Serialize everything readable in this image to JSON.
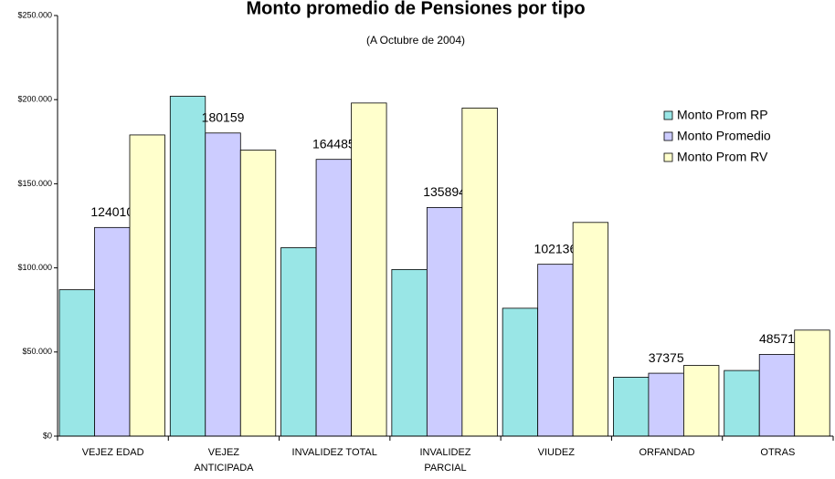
{
  "chart_data": {
    "type": "bar",
    "title": "Monto promedio de Pensiones por tipo",
    "subtitle": "(A Octubre de 2004)",
    "categories": [
      "VEJEZ EDAD",
      "VEJEZ\nANTICIPADA",
      "INVALIDEZ TOTAL",
      "INVALIDEZ\nPARCIAL",
      "VIUDEZ",
      "ORFANDAD",
      "OTRAS"
    ],
    "series": [
      {
        "name": "Monto Prom RP",
        "color": "#99e6e6",
        "values": [
          87000,
          202000,
          112000,
          99000,
          76000,
          35000,
          39000
        ]
      },
      {
        "name": "Monto Promedio",
        "color": "#ccccff",
        "values": [
          124010,
          180159,
          164485,
          135894,
          102136,
          37375,
          48571
        ],
        "data_labels": true
      },
      {
        "name": "Monto Prom RV",
        "color": "#ffffcc",
        "values": [
          179000,
          170000,
          198000,
          195000,
          127000,
          42000,
          63000
        ]
      }
    ],
    "ylim": [
      0,
      250000
    ],
    "yticks": [
      {
        "value": 0,
        "label": "$0"
      },
      {
        "value": 50000,
        "label": "$50.000"
      },
      {
        "value": 100000,
        "label": "$100.000"
      },
      {
        "value": 150000,
        "label": "$150.000"
      },
      {
        "value": 200000,
        "label": "$200.000"
      },
      {
        "value": 250000,
        "label": "$250.000"
      }
    ],
    "legend": "upper right",
    "grid": false
  }
}
